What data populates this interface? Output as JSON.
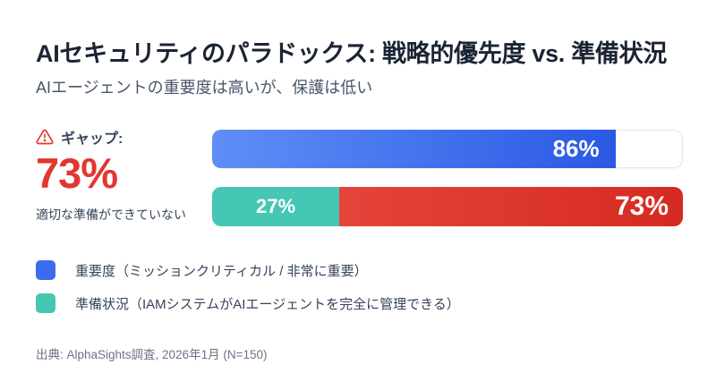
{
  "header": {
    "title": "AIセキュリティのパラドックス: 戦略的優先度 vs. 準備状況",
    "subtitle": "AIエージェントの重要度は高いが、保護は低い"
  },
  "gap_callout": {
    "icon": "warning-triangle-icon",
    "label": "ギャップ:",
    "value": "73%",
    "description": "適切な準備ができていない",
    "color": "#E23730"
  },
  "bars": {
    "priority": {
      "value": 86,
      "label": "86%"
    },
    "readiness": {
      "value": 27,
      "label": "27%"
    },
    "gap": {
      "value": 73,
      "label": "73%"
    }
  },
  "legend": [
    {
      "label": "重要度（ミッションクリティカル / 非常に重要）",
      "swatch_color": "#3D6BF0"
    },
    {
      "label": "準備状況（IAMシステムがAIエージェントを完全に管理できる）",
      "swatch_color": "#45C7B3"
    }
  ],
  "source": "出典: AlphaSights調査, 2026年1月 (N=150)",
  "colors": {
    "priority_blue_start": "#5F8EF7",
    "priority_blue_end": "#2A59E4",
    "readiness_teal": "#45C7B3",
    "gap_red_start": "#E5443B",
    "gap_red_end": "#D52A21",
    "accent_red": "#E23730",
    "track_border": "#E4E7EC"
  },
  "chart_data": {
    "type": "bar",
    "orientation": "horizontal",
    "title": "AIセキュリティのパラドックス: 戦略的優先度 vs. 準備状況",
    "subtitle": "AIエージェントの重要度は高いが、保護は低い",
    "xlim": [
      0,
      100
    ],
    "unit": "%",
    "grid": false,
    "legend_position": "bottom",
    "series": [
      {
        "name": "重要度（ミッションクリティカル / 非常に重要）",
        "value": 86,
        "color": "#3D6BF0"
      },
      {
        "name": "準備状況（IAMシステムがAIエージェントを完全に管理できる）",
        "value": 27,
        "color": "#45C7B3"
      },
      {
        "name": "ギャップ",
        "value": 73,
        "color": "#D52A21"
      }
    ],
    "annotation": {
      "label": "ギャップ:",
      "value": "73%",
      "text": "適切な準備ができていない"
    },
    "source": "出典: AlphaSights調査, 2026年1月 (N=150)"
  }
}
